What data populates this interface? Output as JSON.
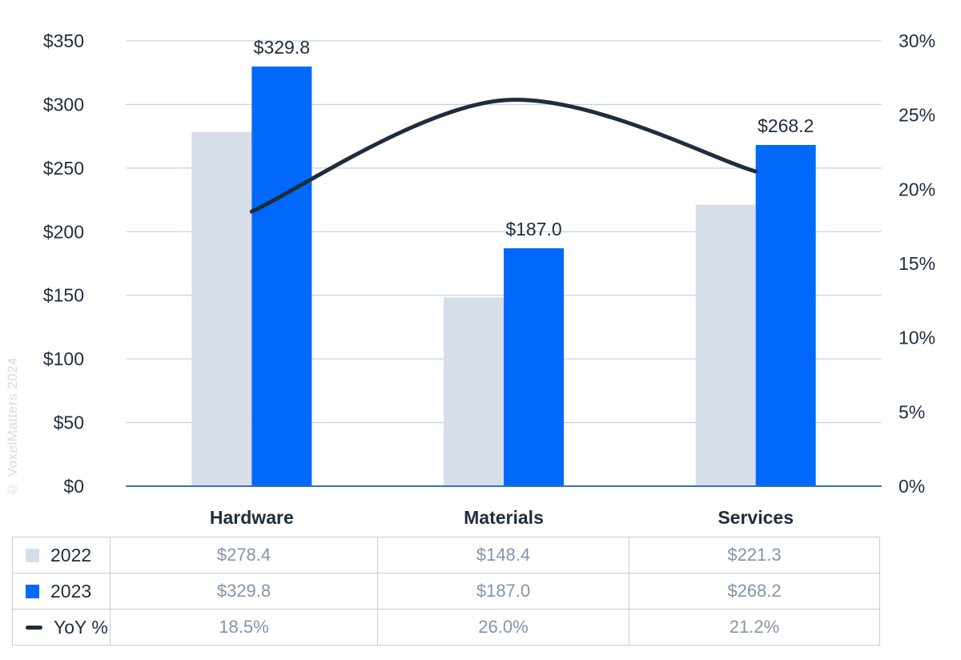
{
  "watermark": "© VoxelMatters 2024",
  "colors": {
    "bar_2022": "#d7dde9",
    "bar_2023": "#0069fb",
    "line": "#1e2d3d",
    "grid": "#b3c9e4",
    "axis_line": "#3273b8",
    "axis_label": "#1e2d3d",
    "category_label": "#1e2d3d",
    "data_label": "#1e2d3d",
    "table_value": "#8495a6",
    "table_border": "#cbcbcb",
    "watermark": "#d9dbde"
  },
  "chart_data": {
    "type": "combo",
    "categories": [
      "Hardware",
      "Materials",
      "Services"
    ],
    "series": [
      {
        "name": "2022",
        "type": "bar",
        "axis": "left",
        "values": [
          278.4,
          148.4,
          221.3
        ]
      },
      {
        "name": "2023",
        "type": "bar",
        "axis": "left",
        "values": [
          329.8,
          187.0,
          268.2
        ],
        "data_labels": [
          "$329.8",
          "$187.0",
          "$268.2"
        ]
      },
      {
        "name": "YoY %",
        "type": "line",
        "axis": "right",
        "values": [
          18.5,
          26.0,
          21.2
        ]
      }
    ],
    "left_axis": {
      "min": 0,
      "max": 350,
      "step": 50,
      "tick_labels": [
        "$0",
        "$50",
        "$100",
        "$150",
        "$200",
        "$250",
        "$300",
        "$350"
      ]
    },
    "right_axis": {
      "min": 0,
      "max": 30,
      "step": 5,
      "tick_labels": [
        "0%",
        "5%",
        "10%",
        "15%",
        "20%",
        "25%",
        "30%"
      ]
    },
    "grid": true,
    "legend_position": "table-below",
    "title": "",
    "xlabel": "",
    "ylabel": ""
  },
  "table": {
    "rows": [
      {
        "label": "2022",
        "swatch": "square-2022",
        "values": [
          "$278.4",
          "$148.4",
          "$221.3"
        ]
      },
      {
        "label": "2023",
        "swatch": "square-2023",
        "values": [
          "$329.8",
          "$187.0",
          "$268.2"
        ]
      },
      {
        "label": "YoY %",
        "swatch": "dash",
        "values": [
          "18.5%",
          "26.0%",
          "21.2%"
        ]
      }
    ]
  }
}
